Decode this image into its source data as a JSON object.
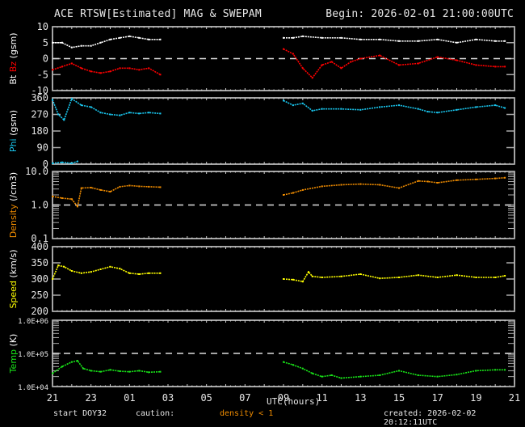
{
  "header": {
    "title": "ACE RTSW[Estimated] MAG & SWEPAM",
    "begin": "Begin: 2026-02-01 21:00:00UTC"
  },
  "footer": {
    "start_doy_label": "start DOY:",
    "start_doy": "32",
    "caution_label": "caution:",
    "caution_note": "density < 1",
    "created": "created: 2026-02-02 20:12:11UTC",
    "xlabel": "UTC(hours)"
  },
  "colors": {
    "bt": "#ffffff",
    "bz": "#ff0000",
    "phi": "#19c6ee",
    "density": "#f08c00",
    "speed": "#ffff00",
    "temp": "#19e619",
    "axis": "#ffffff",
    "caution": "#f08c00"
  },
  "chart_data": [
    {
      "type": "scatter",
      "title": "Bt Bz (gsm)",
      "ylabel": "Bt Bz (gsm)",
      "ylim": [
        -10,
        10
      ],
      "yticks": [
        "10",
        "5",
        "0",
        "-5",
        "-10"
      ],
      "reference_line": 0,
      "x_ticks": [
        "21",
        "23",
        "01",
        "03",
        "05",
        "07",
        "09",
        "11",
        "13",
        "15",
        "17",
        "19",
        "21"
      ],
      "series": [
        {
          "name": "Bt",
          "color": "#ffffff",
          "x": [
            21.0,
            21.5,
            22.0,
            22.5,
            23.0,
            23.5,
            24.0,
            24.5,
            25.0,
            25.5,
            26.0,
            26.6,
            33.0,
            33.5,
            34.0,
            35.0,
            36.0,
            37.0,
            38.0,
            39.0,
            40.0,
            41.0,
            42.0,
            43.0,
            44.0,
            44.5
          ],
          "y": [
            5,
            5,
            3.5,
            4,
            4,
            5,
            6,
            6.5,
            7,
            6.5,
            6,
            6,
            6.5,
            6.5,
            7,
            6.5,
            6.5,
            6,
            6,
            5.5,
            5.5,
            6,
            5,
            6,
            5.5,
            5.5
          ]
        },
        {
          "name": "Bz",
          "color": "#ff0000",
          "x": [
            21.0,
            21.5,
            22.0,
            22.5,
            23.0,
            23.5,
            24.0,
            24.5,
            25.0,
            25.5,
            26.0,
            26.6,
            33.0,
            33.5,
            34.0,
            34.5,
            35.0,
            35.5,
            36.0,
            36.5,
            37.0,
            38.0,
            39.0,
            40.0,
            41.0,
            42.0,
            43.0,
            44.0,
            44.5
          ],
          "y": [
            -3.5,
            -2.5,
            -1.5,
            -3,
            -4,
            -4.5,
            -4,
            -3,
            -3,
            -3.5,
            -3,
            -5,
            3,
            1.5,
            -3,
            -6,
            -2,
            -1,
            -3,
            -1,
            0,
            1,
            -2,
            -1.5,
            0.5,
            -0.5,
            -2,
            -2.5,
            -2.5
          ]
        }
      ]
    },
    {
      "type": "scatter",
      "title": "Phi (gsm)",
      "ylabel": "Phi (gsm)",
      "ylim": [
        0,
        360
      ],
      "yticks": [
        "360",
        "270",
        "180",
        "90",
        "0"
      ],
      "series": [
        {
          "name": "Phi",
          "color": "#19c6ee",
          "x": [
            21.0,
            21.3,
            21.6,
            22.0,
            22.5,
            23.0,
            23.5,
            24.0,
            24.5,
            25.0,
            25.5,
            26.0,
            26.6,
            33.0,
            33.5,
            34.0,
            34.5,
            35.0,
            36.0,
            37.0,
            38.0,
            39.0,
            40.0,
            40.5,
            41.0,
            42.0,
            43.0,
            44.0,
            44.5
          ],
          "y": [
            350,
            270,
            240,
            355,
            320,
            310,
            280,
            270,
            265,
            280,
            275,
            280,
            275,
            345,
            320,
            330,
            290,
            300,
            300,
            295,
            310,
            320,
            300,
            285,
            280,
            295,
            310,
            320,
            305
          ]
        },
        {
          "name": "Phi-low",
          "color": "#19c6ee",
          "x": [
            21.0,
            21.5,
            22.0,
            22.3
          ],
          "y": [
            5,
            10,
            5,
            15
          ]
        }
      ]
    },
    {
      "type": "scatter",
      "title": "Density (/cm3)",
      "ylabel": "Density (/cm3)",
      "yscale": "log",
      "ylim": [
        0.1,
        10.0
      ],
      "yticks": [
        "10.0",
        "1.0",
        "0.1"
      ],
      "reference_line": 1.0,
      "series": [
        {
          "name": "Density",
          "color": "#f08c00",
          "x": [
            21.0,
            21.5,
            22.0,
            22.3,
            22.5,
            23.0,
            23.5,
            24.0,
            24.5,
            25.0,
            25.5,
            26.0,
            26.6,
            33.0,
            33.5,
            34.0,
            35.0,
            36.0,
            37.0,
            38.0,
            39.0,
            40.0,
            40.5,
            41.0,
            42.0,
            43.0,
            44.0,
            44.5
          ],
          "y": [
            1.8,
            1.6,
            1.5,
            0.9,
            3.2,
            3.3,
            2.8,
            2.5,
            3.5,
            3.8,
            3.6,
            3.5,
            3.4,
            2.0,
            2.3,
            2.8,
            3.6,
            4.0,
            4.2,
            4.0,
            3.2,
            5.2,
            5.0,
            4.6,
            5.5,
            5.8,
            6.2,
            6.5
          ]
        }
      ]
    },
    {
      "type": "scatter",
      "title": "Speed (km/s)",
      "ylabel": "Speed (km/s)",
      "ylim": [
        200,
        400
      ],
      "yticks": [
        "400",
        "350",
        "300",
        "250",
        "200"
      ],
      "series": [
        {
          "name": "Speed",
          "color": "#ffff00",
          "x": [
            21.0,
            21.3,
            21.6,
            22.0,
            22.5,
            23.0,
            23.5,
            24.0,
            24.5,
            25.0,
            25.5,
            26.0,
            26.6,
            33.0,
            33.5,
            34.0,
            34.3,
            34.5,
            35.0,
            36.0,
            37.0,
            38.0,
            39.0,
            40.0,
            41.0,
            42.0,
            43.0,
            44.0,
            44.5
          ],
          "y": [
            300,
            342,
            338,
            325,
            318,
            322,
            330,
            338,
            332,
            318,
            315,
            318,
            318,
            300,
            298,
            292,
            322,
            308,
            305,
            308,
            315,
            302,
            305,
            312,
            305,
            312,
            305,
            305,
            310
          ]
        }
      ]
    },
    {
      "type": "scatter",
      "title": "Temp (K)",
      "ylabel": "Temp (K)",
      "yscale": "log",
      "ylim": [
        10000,
        1000000
      ],
      "yticks": [
        "1.0E+06",
        "1.0E+05",
        "1.0E+04"
      ],
      "reference_line": 100000,
      "series": [
        {
          "name": "Temp",
          "color": "#19e619",
          "x": [
            21.0,
            21.5,
            22.0,
            22.3,
            22.6,
            23.0,
            23.5,
            24.0,
            24.5,
            25.0,
            25.5,
            26.0,
            26.6,
            33.0,
            33.5,
            34.0,
            34.5,
            35.0,
            35.5,
            36.0,
            37.0,
            38.0,
            39.0,
            40.0,
            41.0,
            42.0,
            43.0,
            44.0,
            44.5
          ],
          "y": [
            25000,
            40000,
            55000,
            60000,
            35000,
            30000,
            28000,
            32000,
            29000,
            28000,
            30000,
            27000,
            28000,
            55000,
            45000,
            35000,
            25000,
            20000,
            22000,
            18000,
            20000,
            22000,
            30000,
            22000,
            20000,
            23000,
            30000,
            32000,
            32000
          ]
        }
      ]
    }
  ]
}
